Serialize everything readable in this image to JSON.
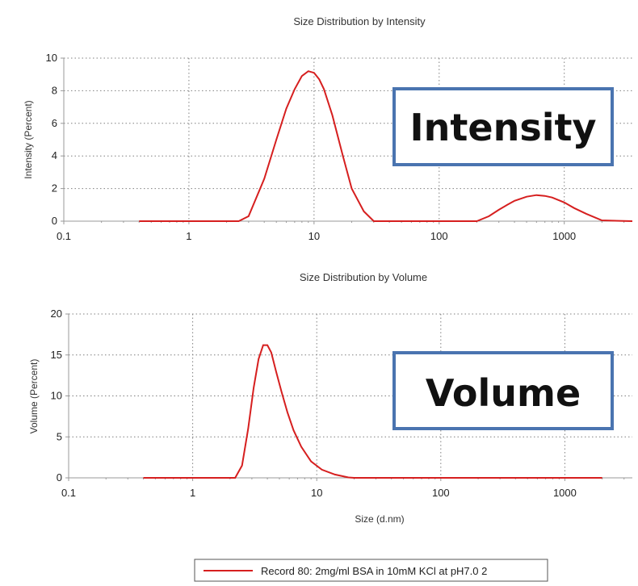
{
  "chart_data": [
    {
      "type": "line",
      "title": "Size Distribution by Intensity",
      "xlabel": "",
      "ylabel": "Intensity (Percent)",
      "xscale": "log",
      "xlim": [
        0.1,
        3500
      ],
      "ylim": [
        0,
        10
      ],
      "xticks": [
        "0.1",
        "1",
        "10",
        "100",
        "1000"
      ],
      "yticks": [
        "0",
        "2",
        "4",
        "6",
        "8",
        "10"
      ],
      "grid": true,
      "series": [
        {
          "color": "#d61f1f",
          "x": [
            0.4,
            1,
            2.5,
            3,
            4,
            5,
            6,
            7,
            8,
            9,
            10,
            11,
            12,
            14,
            17,
            20,
            25,
            30,
            40,
            100,
            200,
            250,
            300,
            350,
            400,
            500,
            600,
            700,
            800,
            1000,
            1200,
            1500,
            2000,
            3500
          ],
          "y": [
            0,
            0,
            0,
            0.3,
            2.6,
            5.0,
            6.9,
            8.1,
            8.9,
            9.2,
            9.1,
            8.7,
            8.1,
            6.5,
            4.0,
            2.0,
            0.6,
            0,
            0,
            0,
            0,
            0.3,
            0.7,
            1.0,
            1.25,
            1.5,
            1.6,
            1.55,
            1.45,
            1.15,
            0.8,
            0.45,
            0.05,
            0
          ]
        }
      ]
    },
    {
      "type": "line",
      "title": "Size Distribution by Volume",
      "xlabel": "Size (d.nm)",
      "ylabel": "Volume (Percent)",
      "xscale": "log",
      "xlim": [
        0.1,
        3500
      ],
      "ylim": [
        0,
        20
      ],
      "xticks": [
        "0.1",
        "1",
        "10",
        "100",
        "1000"
      ],
      "yticks": [
        "0",
        "5",
        "10",
        "15",
        "20"
      ],
      "grid": true,
      "series": [
        {
          "color": "#d61f1f",
          "x": [
            0.4,
            1,
            2.2,
            2.5,
            2.8,
            3.1,
            3.4,
            3.7,
            4.0,
            4.3,
            4.7,
            5.2,
            5.8,
            6.5,
            7.5,
            9,
            11,
            14,
            18,
            20,
            2000
          ],
          "y": [
            0,
            0,
            0,
            1.5,
            6.0,
            11.0,
            14.5,
            16.2,
            16.2,
            15.3,
            13.0,
            10.5,
            8.0,
            5.8,
            3.8,
            2.0,
            1.0,
            0.4,
            0.05,
            0,
            0
          ]
        }
      ]
    }
  ],
  "badges": {
    "intensity": "Intensity",
    "volume": "Volume"
  },
  "legend": {
    "label": "Record 80: 2mg/ml BSA in 10mM KCl at pH7.0 2",
    "color": "#d61f1f"
  }
}
